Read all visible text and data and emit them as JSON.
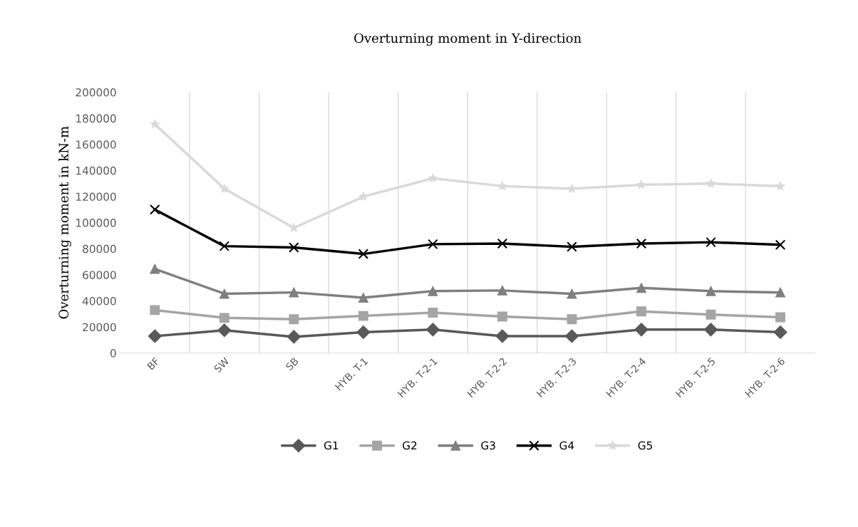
{
  "chart_data": {
    "type": "line",
    "title": "Overturning moment in Y-direction",
    "ylabel": "Overturning moment in kN-m",
    "categories": [
      "BF",
      "SW",
      "SB",
      "HYB. T-1",
      "HYB. T-2-1",
      "HYB. T-2-2",
      "HYB. T-2-3",
      "HYB. T-2-4",
      "HYB. T-2-5",
      "HYB. T-2-6"
    ],
    "series": [
      {
        "name": "G1",
        "color": "#595959",
        "marker": "diamond",
        "values": [
          13000,
          17500,
          12500,
          16000,
          18000,
          13000,
          13000,
          18000,
          18000,
          16000
        ]
      },
      {
        "name": "G2",
        "color": "#a5a5a5",
        "marker": "square",
        "values": [
          33000,
          27000,
          26000,
          28500,
          31000,
          28000,
          26000,
          32000,
          29500,
          27500
        ]
      },
      {
        "name": "G3",
        "color": "#7f7f7f",
        "marker": "triangle",
        "values": [
          64500,
          45500,
          46500,
          42500,
          47500,
          48000,
          45500,
          50000,
          47500,
          46500
        ]
      },
      {
        "name": "G4",
        "color": "#000000",
        "marker": "cross",
        "values": [
          110000,
          82000,
          81000,
          76000,
          83500,
          84000,
          81500,
          84000,
          85000,
          83000
        ]
      },
      {
        "name": "G5",
        "color": "#d9d9d9",
        "marker": "star",
        "values": [
          175500,
          126000,
          96000,
          120000,
          134000,
          128000,
          126000,
          129000,
          130000,
          128000
        ]
      }
    ],
    "ylim": [
      0,
      200000
    ],
    "yticks": [
      0,
      20000,
      40000,
      60000,
      80000,
      100000,
      120000,
      140000,
      160000,
      180000,
      200000
    ],
    "grid": "x",
    "legend": "bottom",
    "line_style": "solid"
  }
}
